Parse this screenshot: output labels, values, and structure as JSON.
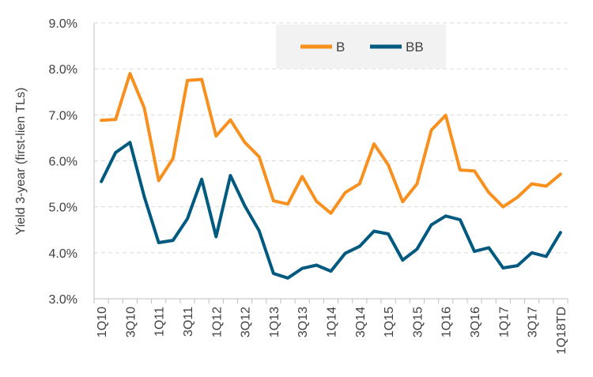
{
  "chart_data": {
    "type": "line",
    "title": "",
    "xlabel": "",
    "ylabel": "Yield 3-year (first-lien TLs)",
    "ylim": [
      0.03,
      0.09
    ],
    "y_ticks": [
      {
        "value": 0.03,
        "label": "3.0%"
      },
      {
        "value": 0.04,
        "label": "4.0%"
      },
      {
        "value": 0.05,
        "label": "5.0%"
      },
      {
        "value": 0.06,
        "label": "6.0%"
      },
      {
        "value": 0.07,
        "label": "7.0%"
      },
      {
        "value": 0.08,
        "label": "8.0%"
      },
      {
        "value": 0.09,
        "label": "9.0%"
      }
    ],
    "grid": "horizontal-dashed",
    "legend_position": "top-center",
    "categories": [
      "1Q10",
      "2Q10",
      "3Q10",
      "4Q10",
      "1Q11",
      "2Q11",
      "3Q11",
      "4Q11",
      "1Q12",
      "2Q12",
      "3Q12",
      "4Q12",
      "1Q13",
      "2Q13",
      "3Q13",
      "4Q13",
      "1Q14",
      "2Q14",
      "3Q14",
      "4Q14",
      "1Q15",
      "2Q15",
      "3Q15",
      "4Q15",
      "1Q16",
      "2Q16",
      "3Q16",
      "4Q16",
      "1Q17",
      "2Q17",
      "3Q17",
      "4Q17",
      "1Q18TD"
    ],
    "x_tick_labels": [
      {
        "index": 0,
        "label": "1Q10"
      },
      {
        "index": 2,
        "label": "3Q10"
      },
      {
        "index": 4,
        "label": "1Q11"
      },
      {
        "index": 6,
        "label": "3Q11"
      },
      {
        "index": 8,
        "label": "1Q12"
      },
      {
        "index": 10,
        "label": "3Q12"
      },
      {
        "index": 12,
        "label": "1Q13"
      },
      {
        "index": 14,
        "label": "3Q13"
      },
      {
        "index": 16,
        "label": "1Q14"
      },
      {
        "index": 18,
        "label": "3Q14"
      },
      {
        "index": 20,
        "label": "1Q15"
      },
      {
        "index": 22,
        "label": "3Q15"
      },
      {
        "index": 24,
        "label": "1Q16"
      },
      {
        "index": 26,
        "label": "3Q16"
      },
      {
        "index": 28,
        "label": "1Q17"
      },
      {
        "index": 30,
        "label": "3Q17"
      },
      {
        "index": 32,
        "label": "1Q18TD"
      }
    ],
    "series": [
      {
        "name": "B",
        "color": "#F7901E",
        "values": [
          0.0688,
          0.069,
          0.079,
          0.0715,
          0.0557,
          0.0605,
          0.0775,
          0.0777,
          0.0654,
          0.0689,
          0.064,
          0.0609,
          0.0513,
          0.0506,
          0.0566,
          0.0512,
          0.0486,
          0.0531,
          0.055,
          0.0637,
          0.0591,
          0.0511,
          0.055,
          0.0667,
          0.0699,
          0.058,
          0.0578,
          0.0531,
          0.05,
          0.0521,
          0.055,
          0.0545,
          0.0571
        ]
      },
      {
        "name": "BB",
        "color": "#005A80",
        "values": [
          0.0555,
          0.0618,
          0.064,
          0.0522,
          0.0422,
          0.0427,
          0.0474,
          0.056,
          0.0435,
          0.0568,
          0.0502,
          0.0448,
          0.0355,
          0.0345,
          0.0366,
          0.0373,
          0.036,
          0.0399,
          0.0414,
          0.0447,
          0.0441,
          0.0384,
          0.0408,
          0.0461,
          0.048,
          0.0472,
          0.0403,
          0.0411,
          0.0367,
          0.0372,
          0.04,
          0.0392,
          0.0444
        ]
      }
    ]
  }
}
